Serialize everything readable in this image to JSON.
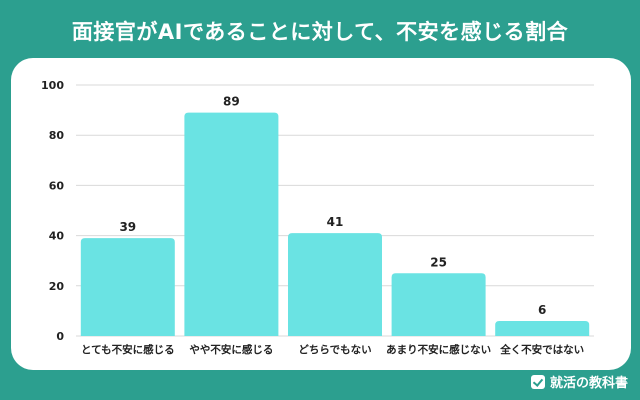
{
  "title": "面接官がAIであることに対して、不安を感じる割合",
  "brand": {
    "name": "就活の教科書",
    "icon": "checkmark-book-icon"
  },
  "colors": {
    "background": "#2c9f8f",
    "bar": "#6ae3e3",
    "grid": "#d9d9d9",
    "text": "#222222"
  },
  "chart_data": {
    "type": "bar",
    "title": "",
    "xlabel": "",
    "ylabel": "",
    "categories": [
      "とても不安に感じる",
      "やや不安に感じる",
      "どちらでもない",
      "あまり不安に感じない",
      "全く不安ではない"
    ],
    "values": [
      39,
      89,
      41,
      25,
      6
    ],
    "ylim": [
      0,
      100
    ],
    "yticks": [
      0,
      20,
      40,
      60,
      80,
      100
    ],
    "grid": true,
    "data_labels": true,
    "legend": "none"
  }
}
